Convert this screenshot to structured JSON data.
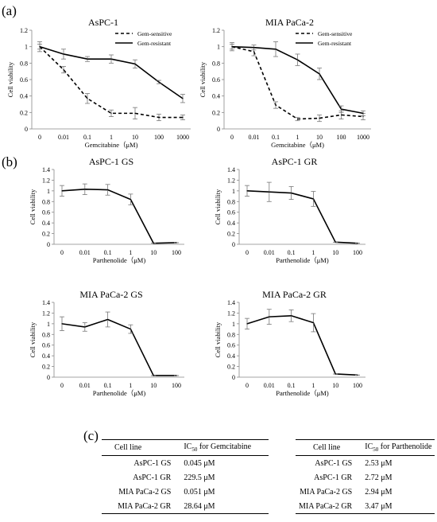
{
  "panel_labels": {
    "a": "(a)",
    "b": "(b)",
    "c": "(c)"
  },
  "chart_data": [
    {
      "type": "line",
      "title": "AsPC-1",
      "xlabel": "Gemcitabine（μM)",
      "ylabel": "Cell viability",
      "categories": [
        "0",
        "0.01",
        "0.1",
        "1",
        "10",
        "100",
        "1000"
      ],
      "ylim": [
        0,
        1.2
      ],
      "yticks": [
        "0",
        "0.2",
        "0.4",
        "0.6",
        "0.8",
        "1",
        "1.2"
      ],
      "legend_position": "top-right",
      "series": [
        {
          "name": "Gem-sensitive",
          "style": "dashed",
          "values": [
            1.0,
            0.72,
            0.37,
            0.19,
            0.19,
            0.14,
            0.14
          ],
          "errors": [
            0.03,
            0.04,
            0.06,
            0.04,
            0.07,
            0.04,
            0.03
          ]
        },
        {
          "name": "Gem-resistant",
          "style": "solid",
          "values": [
            1.0,
            0.91,
            0.85,
            0.85,
            0.79,
            0.57,
            0.37
          ],
          "errors": [
            0.06,
            0.06,
            0.03,
            0.05,
            0.05,
            0.02,
            0.05
          ]
        }
      ]
    },
    {
      "type": "line",
      "title": "MIA PaCa-2",
      "xlabel": "Gemcitabine（μM)",
      "ylabel": "Cell viability",
      "categories": [
        "0",
        "0.01",
        "0.1",
        "1",
        "10",
        "100",
        "1000"
      ],
      "ylim": [
        0,
        1.2
      ],
      "yticks": [
        "0",
        "0.2",
        "0.4",
        "0.6",
        "0.8",
        "1",
        "1.2"
      ],
      "legend_position": "top-right",
      "series": [
        {
          "name": "Gem-sensitive",
          "style": "dashed",
          "values": [
            1.0,
            0.94,
            0.29,
            0.12,
            0.13,
            0.17,
            0.15
          ],
          "errors": [
            0.05,
            0.05,
            0.04,
            0.02,
            0.04,
            0.05,
            0.04
          ]
        },
        {
          "name": "Gem-resistant",
          "style": "solid",
          "values": [
            1.0,
            0.99,
            0.97,
            0.84,
            0.67,
            0.24,
            0.19
          ],
          "errors": [
            0.03,
            0.03,
            0.09,
            0.07,
            0.07,
            0.04,
            0.03
          ]
        }
      ]
    },
    {
      "type": "line",
      "title": "AsPC-1 GS",
      "xlabel": "Parthenolide（μM)",
      "ylabel": "Cell viability",
      "categories": [
        "0",
        "0.01",
        "0.1",
        "1",
        "10",
        "100"
      ],
      "ylim": [
        0,
        1.4
      ],
      "yticks": [
        "0",
        "0.2",
        "0.4",
        "0.6",
        "0.8",
        "1",
        "1.2",
        "1.4"
      ],
      "series": [
        {
          "style": "solid",
          "values": [
            1.0,
            1.03,
            1.02,
            0.84,
            0.02,
            0.03
          ],
          "errors": [
            0.1,
            0.1,
            0.1,
            0.1,
            0.0,
            0.0
          ]
        }
      ]
    },
    {
      "type": "line",
      "title": "AsPC-1 GR",
      "xlabel": "Parthenolide（μM)",
      "ylabel": "Cell viability",
      "categories": [
        "0",
        "0.01",
        "0.1",
        "1",
        "10",
        "100"
      ],
      "ylim": [
        0,
        1.4
      ],
      "yticks": [
        "0",
        "0.2",
        "0.4",
        "0.6",
        "0.8",
        "1",
        "1.2",
        "1.4"
      ],
      "series": [
        {
          "style": "solid",
          "values": [
            1.0,
            0.98,
            0.96,
            0.85,
            0.04,
            0.02
          ],
          "errors": [
            0.1,
            0.18,
            0.12,
            0.14,
            0.0,
            0.0
          ]
        }
      ]
    },
    {
      "type": "line",
      "title": "MIA PaCa-2 GS",
      "xlabel": "Parthenolide（μM)",
      "ylabel": "Cell viability",
      "categories": [
        "0",
        "0.01",
        "0.1",
        "1",
        "10",
        "100"
      ],
      "ylim": [
        0,
        1.4
      ],
      "yticks": [
        "0",
        "0.2",
        "0.4",
        "0.6",
        "0.8",
        "1",
        "1.2",
        "1.4"
      ],
      "series": [
        {
          "style": "solid",
          "values": [
            1.0,
            0.94,
            1.08,
            0.9,
            0.03,
            0.03
          ],
          "errors": [
            0.13,
            0.08,
            0.14,
            0.08,
            0.0,
            0.0
          ]
        }
      ]
    },
    {
      "type": "line",
      "title": "MIA PaCa-2 GR",
      "xlabel": "Parthenolide（μM)",
      "ylabel": "Cell viability",
      "categories": [
        "0",
        "0.01",
        "0.1",
        "1",
        "10",
        "100"
      ],
      "ylim": [
        0,
        1.4
      ],
      "yticks": [
        "0",
        "0.2",
        "0.4",
        "0.6",
        "0.8",
        "1",
        "1.2",
        "1.4"
      ],
      "series": [
        {
          "style": "solid",
          "values": [
            1.0,
            1.13,
            1.15,
            1.02,
            0.06,
            0.04
          ],
          "errors": [
            0.1,
            0.14,
            0.11,
            0.17,
            0.0,
            0.0
          ]
        }
      ]
    }
  ],
  "tables": [
    {
      "headers": [
        "Cell line",
        "IC50 for Gemcitabine"
      ],
      "rows": [
        [
          "AsPC-1 GS",
          "0.045 μM"
        ],
        [
          "AsPC-1 GR",
          "229.5 μM"
        ],
        [
          "MIA PaCa-2 GS",
          "0.051 μM"
        ],
        [
          "MIA PaCa-2 GR",
          "28.64 μM"
        ]
      ]
    },
    {
      "headers": [
        "Cell line",
        "IC50 for Parthenolide"
      ],
      "rows": [
        [
          "AsPC-1 GS",
          "2.53 μM"
        ],
        [
          "AsPC-1 GR",
          "2.72 μM"
        ],
        [
          "MIA PaCa-2 GS",
          "2.94 μM"
        ],
        [
          "MIA PaCa-2 GR",
          "3.47 μM"
        ]
      ]
    }
  ]
}
